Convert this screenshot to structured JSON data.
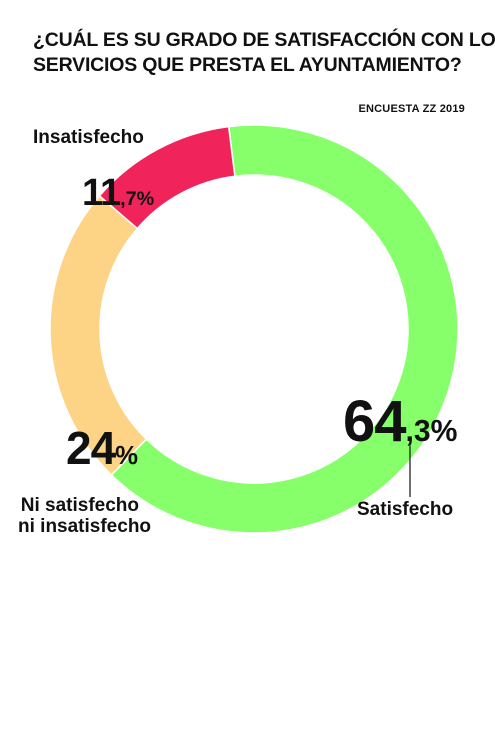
{
  "title_lines": [
    "¿CUÁL ES SU GRADO DE SATISFACCIÓN CON LOS",
    "SERVICIOS QUE PRESTA EL AYUNTAMIENTO?"
  ],
  "source": "ENCUESTA ZZ 2019",
  "chart_data": {
    "type": "pie",
    "variant": "donut",
    "title": "¿CUÁL ES SU GRADO DE SATISFACCIÓN CON LOS SERVICIOS QUE PRESTA EL AYUNTAMIENTO?",
    "categories": [
      "Satisfecho",
      "Ni satisfecho ni insatisfecho",
      "Insatisfecho"
    ],
    "values": [
      64.3,
      24,
      11.7
    ],
    "colors": [
      "#86ff6b",
      "#fdd486",
      "#f0245a"
    ],
    "value_labels": [
      {
        "int": "64",
        "dec": ",3%"
      },
      {
        "int": "24",
        "dec": "%"
      },
      {
        "int": "11",
        "dec": ",7%"
      }
    ],
    "label_lines": [
      [
        "Satisfecho"
      ],
      [
        "Ni satisfecho",
        "ni insatisfecho"
      ],
      [
        "Insatisfecho"
      ]
    ]
  }
}
